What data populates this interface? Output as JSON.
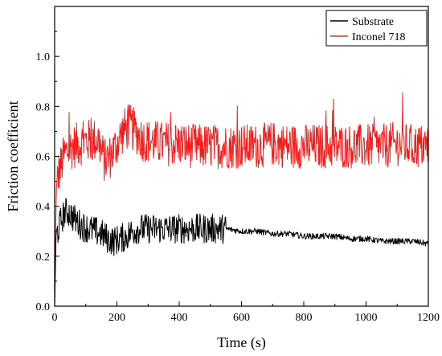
{
  "chart_data": {
    "type": "line",
    "title": "",
    "xlabel": "Time (s)",
    "ylabel": "Friction coefficient",
    "xlim": [
      0,
      1200
    ],
    "ylim": [
      0,
      1.2
    ],
    "x_ticks": [
      0,
      200,
      400,
      600,
      800,
      1000,
      1200
    ],
    "y_ticks": [
      0.0,
      0.2,
      0.4,
      0.6,
      0.8,
      1.0
    ],
    "x_tick_labels": [
      "0",
      "200",
      "400",
      "600",
      "800",
      "1000",
      "1200"
    ],
    "y_tick_labels": [
      "0.0",
      "0.2",
      "0.4",
      "0.6",
      "0.8",
      "1.0"
    ],
    "grid": false,
    "legend_position": "top-right",
    "series": [
      {
        "name": "Substrate",
        "color": "#000000",
        "x": [
          0,
          5,
          10,
          20,
          30,
          40,
          50,
          70,
          90,
          110,
          130,
          150,
          170,
          190,
          210,
          230,
          250,
          270,
          300,
          350,
          400,
          450,
          500,
          550,
          600,
          650,
          700,
          750,
          800,
          850,
          900,
          950,
          1000,
          1050,
          1100,
          1150,
          1200
        ],
        "values": [
          0.0,
          0.3,
          0.3,
          0.34,
          0.37,
          0.38,
          0.37,
          0.34,
          0.32,
          0.31,
          0.3,
          0.29,
          0.27,
          0.26,
          0.27,
          0.28,
          0.3,
          0.31,
          0.31,
          0.31,
          0.31,
          0.31,
          0.31,
          0.31,
          0.3,
          0.3,
          0.29,
          0.29,
          0.28,
          0.28,
          0.28,
          0.27,
          0.27,
          0.26,
          0.26,
          0.26,
          0.25
        ]
      },
      {
        "name": "Inconel 718",
        "color": "#ff1a1a",
        "x": [
          0,
          5,
          10,
          20,
          30,
          40,
          60,
          80,
          100,
          120,
          140,
          160,
          180,
          200,
          220,
          240,
          260,
          280,
          300,
          350,
          400,
          450,
          500,
          550,
          600,
          650,
          700,
          750,
          800,
          850,
          900,
          950,
          1000,
          1050,
          1100,
          1150,
          1200
        ],
        "values": [
          0.0,
          0.45,
          0.52,
          0.56,
          0.6,
          0.62,
          0.64,
          0.65,
          0.66,
          0.66,
          0.67,
          0.58,
          0.6,
          0.65,
          0.7,
          0.72,
          0.7,
          0.67,
          0.66,
          0.65,
          0.65,
          0.64,
          0.64,
          0.64,
          0.64,
          0.64,
          0.65,
          0.64,
          0.64,
          0.64,
          0.64,
          0.64,
          0.64,
          0.64,
          0.65,
          0.64,
          0.64
        ]
      }
    ]
  },
  "noise": {
    "Substrate": {
      "early_amplitude": 0.06,
      "late_amplitude": 0.012
    },
    "Inconel 718": {
      "amplitude": 0.09
    }
  }
}
